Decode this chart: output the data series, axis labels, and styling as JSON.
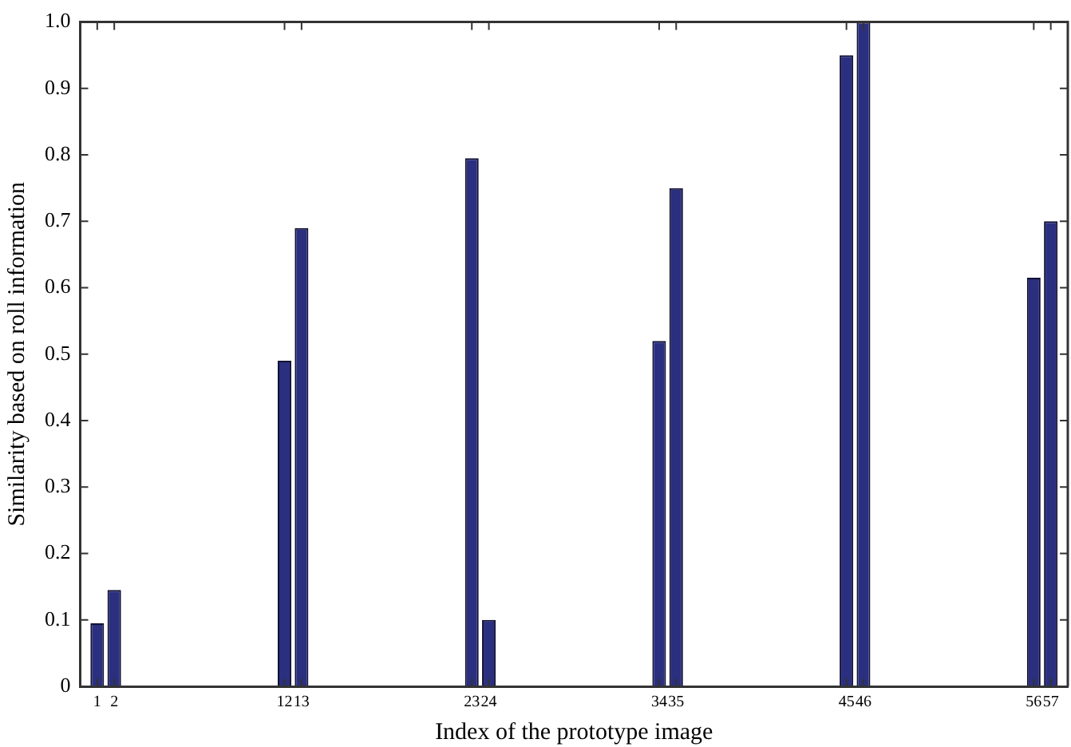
{
  "chart_data": {
    "type": "bar",
    "xlabel": "Index of the prototype image",
    "ylabel": "Similarity based on roll information",
    "x": [
      1,
      2,
      12,
      13,
      23,
      24,
      34,
      35,
      45,
      46,
      56,
      57
    ],
    "values": [
      0.095,
      0.145,
      0.49,
      0.69,
      0.795,
      0.1,
      0.52,
      0.75,
      0.95,
      1.0,
      0.615,
      0.7
    ],
    "color": "#2b2f80",
    "xlim": [
      0,
      58
    ],
    "xticks": [
      1,
      2,
      12,
      13,
      23,
      24,
      34,
      35,
      45,
      46,
      56,
      57
    ],
    "ylim": [
      0,
      1
    ],
    "yticks": [
      0,
      0.1,
      0.2,
      0.3,
      0.4,
      0.5,
      0.6,
      0.7,
      0.8,
      0.9,
      {
        "value": 1,
        "label": "1.0"
      }
    ],
    "grid": false,
    "legend": false
  }
}
